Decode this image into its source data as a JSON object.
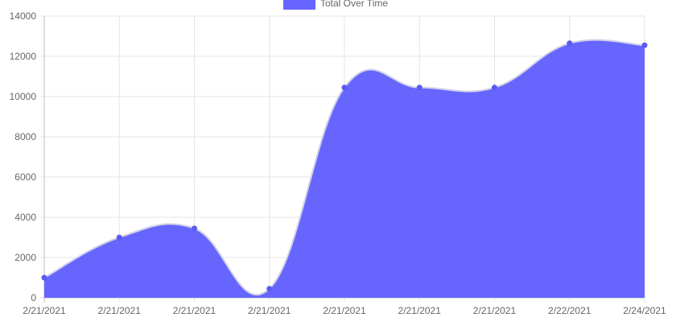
{
  "chart_data": {
    "type": "area",
    "title": "",
    "xlabel": "",
    "ylabel": "",
    "categories": [
      "2/21/2021",
      "2/21/2021",
      "2/21/2021",
      "2/21/2021",
      "2/21/2021",
      "2/21/2021",
      "2/21/2021",
      "2/22/2021",
      "2/24/2021"
    ],
    "series": [
      {
        "name": "Total Over Time",
        "values": [
          1000,
          3000,
          3450,
          450,
          10450,
          10450,
          10450,
          12650,
          12550
        ],
        "fill_color": "#6666ff",
        "line_color": "#d0d0e8",
        "point_color": "#5b5bf0"
      }
    ],
    "ylim": [
      0,
      14000
    ],
    "yticks": [
      0,
      2000,
      4000,
      6000,
      8000,
      10000,
      12000,
      14000
    ],
    "grid": true,
    "legend_position": "top-center",
    "curve": "smooth"
  }
}
